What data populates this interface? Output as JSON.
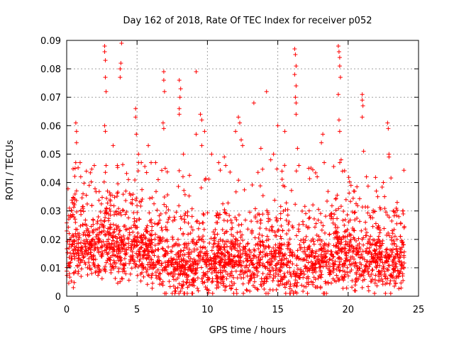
{
  "chart_data": {
    "type": "scatter",
    "title": "Day 162 of 2018, Rate Of TEC Index for receiver p052",
    "xlabel": "GPS time / hours",
    "ylabel": "ROTI / TECUs",
    "xlim": [
      0,
      25
    ],
    "ylim": [
      0,
      0.09
    ],
    "x_ticks": [
      0,
      5,
      10,
      15,
      20,
      25
    ],
    "x_tick_labels": [
      "0",
      "5",
      "10",
      "15",
      "20",
      "25"
    ],
    "y_ticks": [
      0,
      0.01,
      0.02,
      0.03,
      0.04,
      0.05,
      0.06,
      0.07,
      0.08,
      0.09
    ],
    "y_tick_labels": [
      "0",
      "0.01",
      "0.02",
      "0.03",
      "0.04",
      "0.05",
      "0.06",
      "0.07",
      "0.08",
      "0.09"
    ],
    "grid": true,
    "marker": "+",
    "color": "#ff0000",
    "series": [
      {
        "name": "ROTI",
        "x_range": [
          0,
          24
        ],
        "baseline_profile": [
          {
            "x": 0,
            "y": 0.014
          },
          {
            "x": 1,
            "y": 0.016
          },
          {
            "x": 2,
            "y": 0.017
          },
          {
            "x": 3,
            "y": 0.017
          },
          {
            "x": 4,
            "y": 0.016
          },
          {
            "x": 5,
            "y": 0.016
          },
          {
            "x": 6,
            "y": 0.015
          },
          {
            "x": 6.8,
            "y": 0.013
          },
          {
            "x": 7.5,
            "y": 0.01
          },
          {
            "x": 9,
            "y": 0.01
          },
          {
            "x": 10.5,
            "y": 0.012
          },
          {
            "x": 12,
            "y": 0.011
          },
          {
            "x": 13.5,
            "y": 0.011
          },
          {
            "x": 15,
            "y": 0.012
          },
          {
            "x": 16.5,
            "y": 0.01
          },
          {
            "x": 18,
            "y": 0.011
          },
          {
            "x": 19.5,
            "y": 0.014
          },
          {
            "x": 21,
            "y": 0.012
          },
          {
            "x": 22.5,
            "y": 0.011
          },
          {
            "x": 24,
            "y": 0.011
          }
        ],
        "values": [
          [
            0.2,
            0.031
          ],
          [
            0.6,
            0.045
          ],
          [
            0.65,
            0.061
          ],
          [
            0.7,
            0.058
          ],
          [
            0.7,
            0.054
          ],
          [
            1.0,
            0.042
          ],
          [
            1.4,
            0.044
          ],
          [
            1.6,
            0.039
          ],
          [
            2.7,
            0.088
          ],
          [
            2.7,
            0.086
          ],
          [
            2.75,
            0.083
          ],
          [
            2.75,
            0.077
          ],
          [
            2.8,
            0.072
          ],
          [
            2.7,
            0.06
          ],
          [
            2.75,
            0.058
          ],
          [
            2.8,
            0.046
          ],
          [
            3.3,
            0.053
          ],
          [
            3.6,
            0.046
          ],
          [
            3.9,
            0.089
          ],
          [
            3.85,
            0.082
          ],
          [
            3.8,
            0.08
          ],
          [
            3.8,
            0.077
          ],
          [
            4.2,
            0.037
          ],
          [
            4.9,
            0.066
          ],
          [
            4.9,
            0.063
          ],
          [
            4.95,
            0.057
          ],
          [
            5.1,
            0.05
          ],
          [
            5.3,
            0.047
          ],
          [
            5.8,
            0.053
          ],
          [
            6.0,
            0.047
          ],
          [
            6.5,
            0.041
          ],
          [
            6.9,
            0.079
          ],
          [
            6.9,
            0.076
          ],
          [
            6.95,
            0.072
          ],
          [
            6.85,
            0.061
          ],
          [
            6.9,
            0.059
          ],
          [
            7.0,
            0.045
          ],
          [
            8.0,
            0.076
          ],
          [
            8.1,
            0.073
          ],
          [
            8.05,
            0.07
          ],
          [
            8.0,
            0.066
          ],
          [
            8.0,
            0.064
          ],
          [
            8.3,
            0.05
          ],
          [
            9.2,
            0.079
          ],
          [
            9.2,
            0.057
          ],
          [
            9.5,
            0.064
          ],
          [
            9.6,
            0.062
          ],
          [
            9.6,
            0.053
          ],
          [
            9.8,
            0.058
          ],
          [
            10.3,
            0.05
          ],
          [
            10.8,
            0.047
          ],
          [
            11.2,
            0.049
          ],
          [
            11.3,
            0.046
          ],
          [
            12.2,
            0.063
          ],
          [
            12.3,
            0.061
          ],
          [
            12.4,
            0.055
          ],
          [
            12.5,
            0.053
          ],
          [
            12.0,
            0.058
          ],
          [
            13.3,
            0.068
          ],
          [
            13.8,
            0.052
          ],
          [
            14.2,
            0.072
          ],
          [
            14.5,
            0.048
          ],
          [
            14.7,
            0.05
          ],
          [
            15.0,
            0.06
          ],
          [
            15.5,
            0.058
          ],
          [
            15.3,
            0.044
          ],
          [
            16.2,
            0.087
          ],
          [
            16.25,
            0.085
          ],
          [
            16.3,
            0.081
          ],
          [
            16.2,
            0.078
          ],
          [
            16.3,
            0.074
          ],
          [
            16.25,
            0.07
          ],
          [
            16.3,
            0.068
          ],
          [
            16.3,
            0.064
          ],
          [
            16.4,
            0.052
          ],
          [
            16.5,
            0.046
          ],
          [
            17.2,
            0.045
          ],
          [
            17.8,
            0.042
          ],
          [
            18.2,
            0.057
          ],
          [
            18.1,
            0.054
          ],
          [
            18.3,
            0.047
          ],
          [
            19.3,
            0.088
          ],
          [
            19.35,
            0.086
          ],
          [
            19.4,
            0.084
          ],
          [
            19.4,
            0.081
          ],
          [
            19.45,
            0.077
          ],
          [
            19.3,
            0.071
          ],
          [
            19.35,
            0.062
          ],
          [
            19.4,
            0.058
          ],
          [
            19.5,
            0.048
          ],
          [
            19.6,
            0.044
          ],
          [
            20.2,
            0.039
          ],
          [
            20.4,
            0.037
          ],
          [
            21.0,
            0.071
          ],
          [
            21.0,
            0.069
          ],
          [
            21.05,
            0.067
          ],
          [
            21.0,
            0.063
          ],
          [
            21.1,
            0.051
          ],
          [
            21.3,
            0.042
          ],
          [
            22.0,
            0.037
          ],
          [
            22.1,
            0.035
          ],
          [
            22.5,
            0.04
          ],
          [
            22.8,
            0.061
          ],
          [
            22.85,
            0.059
          ],
          [
            22.9,
            0.05
          ],
          [
            22.9,
            0.049
          ],
          [
            23.2,
            0.03
          ],
          [
            23.6,
            0.028
          ],
          [
            23.9,
            0.03
          ]
        ]
      }
    ]
  }
}
